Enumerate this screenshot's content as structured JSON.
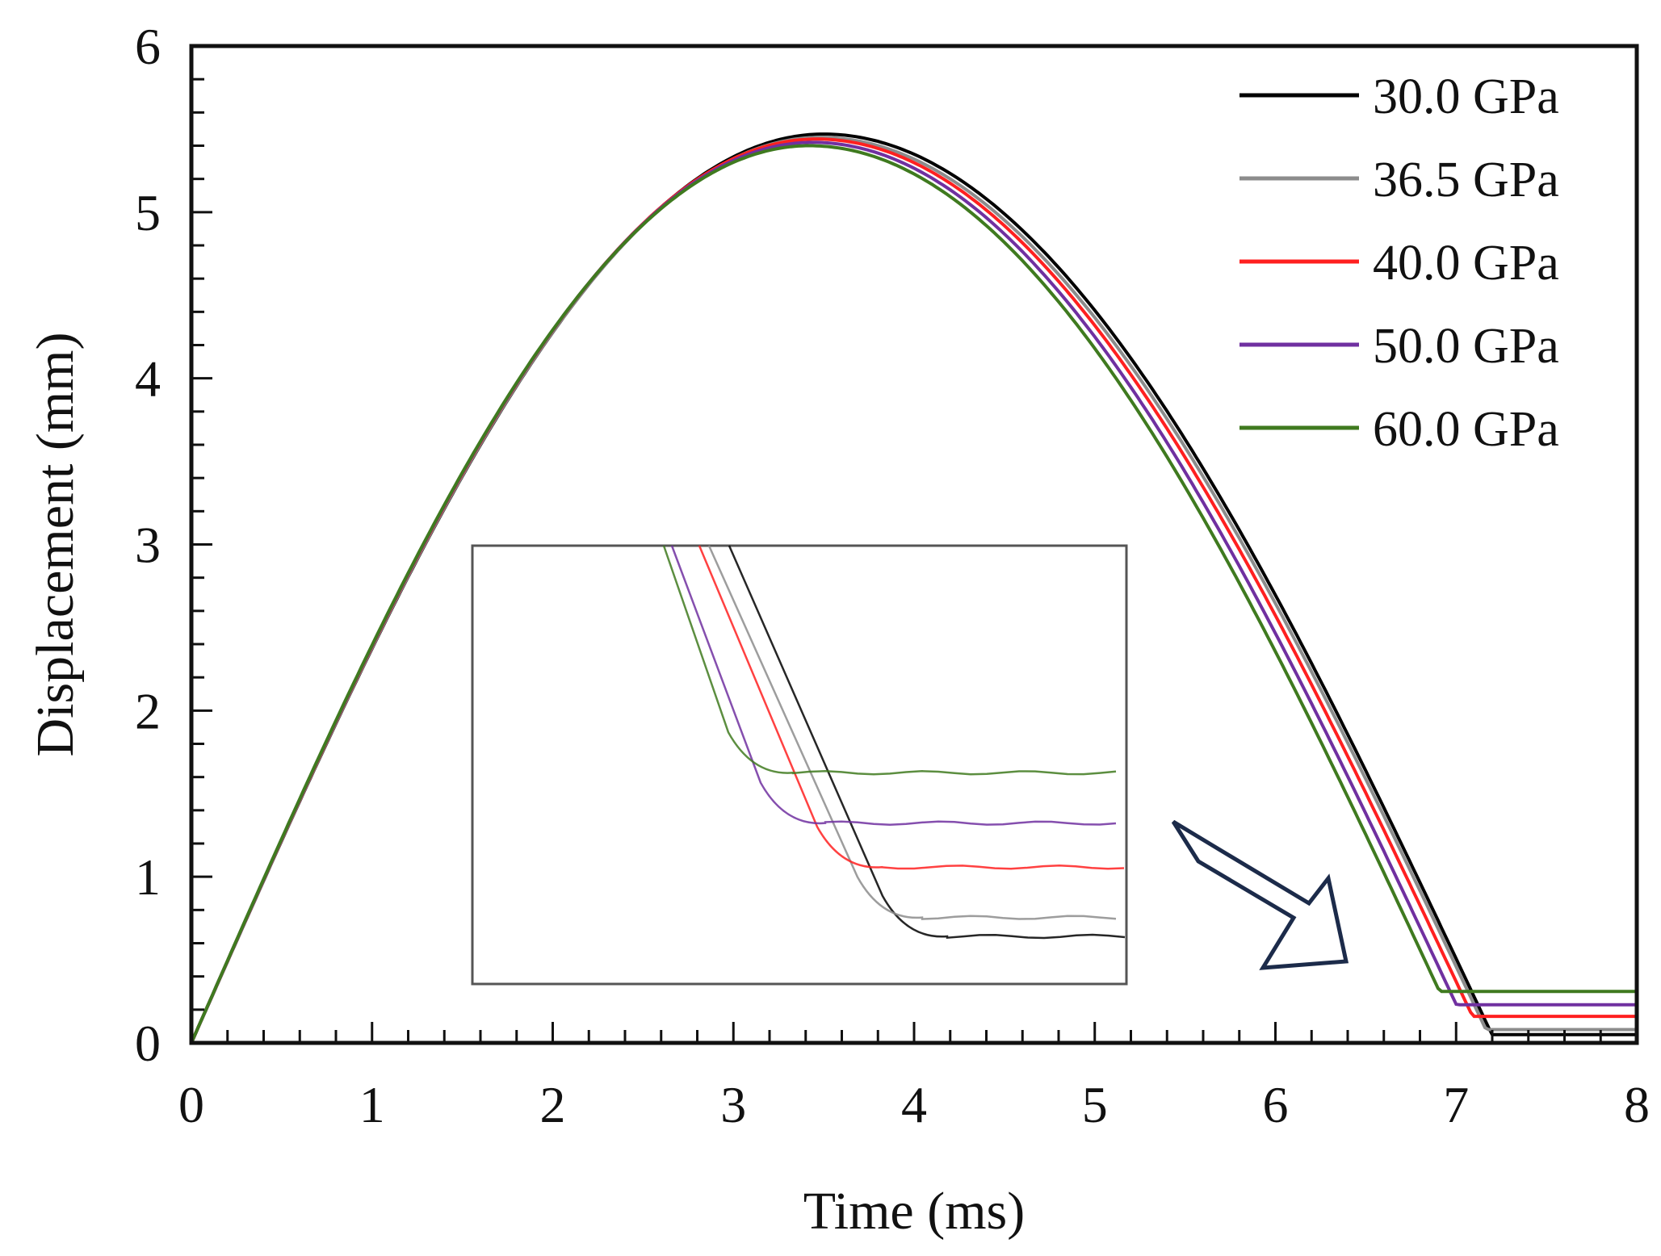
{
  "chart_data": {
    "type": "line",
    "title": "",
    "xlabel": "Time (ms)",
    "ylabel": "Displacement (mm)",
    "xlim": [
      0,
      8
    ],
    "ylim": [
      0,
      6
    ],
    "x_ticks": [
      "0",
      "1",
      "2",
      "3",
      "4",
      "5",
      "6",
      "7",
      "8"
    ],
    "y_ticks": [
      "0",
      "1",
      "2",
      "3",
      "4",
      "5",
      "6"
    ],
    "grid": false,
    "legend_position": "top-right",
    "series": [
      {
        "name": "30.0 GPa",
        "color": "#000000",
        "peak": 5.47,
        "peak_time": 3.5,
        "end_time": 7.22,
        "residual": 0.05
      },
      {
        "name": "36.5 GPa",
        "color": "#8c8c8c",
        "peak": 5.45,
        "peak_time": 3.48,
        "end_time": 7.2,
        "residual": 0.08
      },
      {
        "name": "40.0 GPa",
        "color": "#ff2020",
        "peak": 5.44,
        "peak_time": 3.46,
        "end_time": 7.16,
        "residual": 0.16
      },
      {
        "name": "50.0 GPa",
        "color": "#7030a0",
        "peak": 5.42,
        "peak_time": 3.44,
        "end_time": 7.1,
        "residual": 0.23
      },
      {
        "name": "60.0 GPa",
        "color": "#3f7a1f",
        "peak": 5.4,
        "peak_time": 3.42,
        "end_time": 7.04,
        "residual": 0.31
      }
    ],
    "inset": {
      "description_hidden": true,
      "series": [
        {
          "name": "30.0 GPa",
          "residual": 0.05
        },
        {
          "name": "36.5 GPa",
          "residual": 0.08
        },
        {
          "name": "40.0 GPa",
          "residual": 0.16
        },
        {
          "name": "50.0 GPa",
          "residual": 0.23
        },
        {
          "name": "60.0 GPa",
          "residual": 0.31
        }
      ]
    }
  },
  "colors": {
    "arrow": "#1c2b4a",
    "inset_frame": "#555555"
  }
}
